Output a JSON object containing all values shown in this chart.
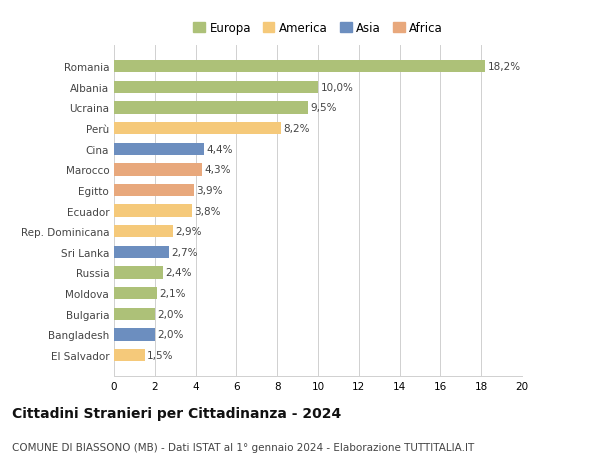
{
  "countries": [
    "Romania",
    "Albania",
    "Ucraina",
    "Perù",
    "Cina",
    "Marocco",
    "Egitto",
    "Ecuador",
    "Rep. Dominicana",
    "Sri Lanka",
    "Russia",
    "Moldova",
    "Bulgaria",
    "Bangladesh",
    "El Salvador"
  ],
  "values": [
    18.2,
    10.0,
    9.5,
    8.2,
    4.4,
    4.3,
    3.9,
    3.8,
    2.9,
    2.7,
    2.4,
    2.1,
    2.0,
    2.0,
    1.5
  ],
  "labels": [
    "18,2%",
    "10,0%",
    "9,5%",
    "8,2%",
    "4,4%",
    "4,3%",
    "3,9%",
    "3,8%",
    "2,9%",
    "2,7%",
    "2,4%",
    "2,1%",
    "2,0%",
    "2,0%",
    "1,5%"
  ],
  "categories": [
    "Europa",
    "America",
    "Asia",
    "Africa"
  ],
  "continent": [
    "Europa",
    "Europa",
    "Europa",
    "America",
    "Asia",
    "Africa",
    "Africa",
    "America",
    "America",
    "Asia",
    "Europa",
    "Europa",
    "Europa",
    "Asia",
    "America"
  ],
  "colors": {
    "Europa": "#adc178",
    "America": "#f5c97a",
    "Asia": "#6c8ebf",
    "Africa": "#e8a87c"
  },
  "xlim": [
    0,
    20
  ],
  "xticks": [
    0,
    2,
    4,
    6,
    8,
    10,
    12,
    14,
    16,
    18,
    20
  ],
  "title": "Cittadini Stranieri per Cittadinanza - 2024",
  "subtitle": "COMUNE DI BIASSONO (MB) - Dati ISTAT al 1° gennaio 2024 - Elaborazione TUTTITALIA.IT",
  "bg_color": "#ffffff",
  "grid_color": "#d0d0d0",
  "bar_height": 0.6,
  "label_fontsize": 7.5,
  "title_fontsize": 10,
  "subtitle_fontsize": 7.5,
  "ytick_fontsize": 7.5,
  "xtick_fontsize": 7.5,
  "legend_fontsize": 8.5
}
